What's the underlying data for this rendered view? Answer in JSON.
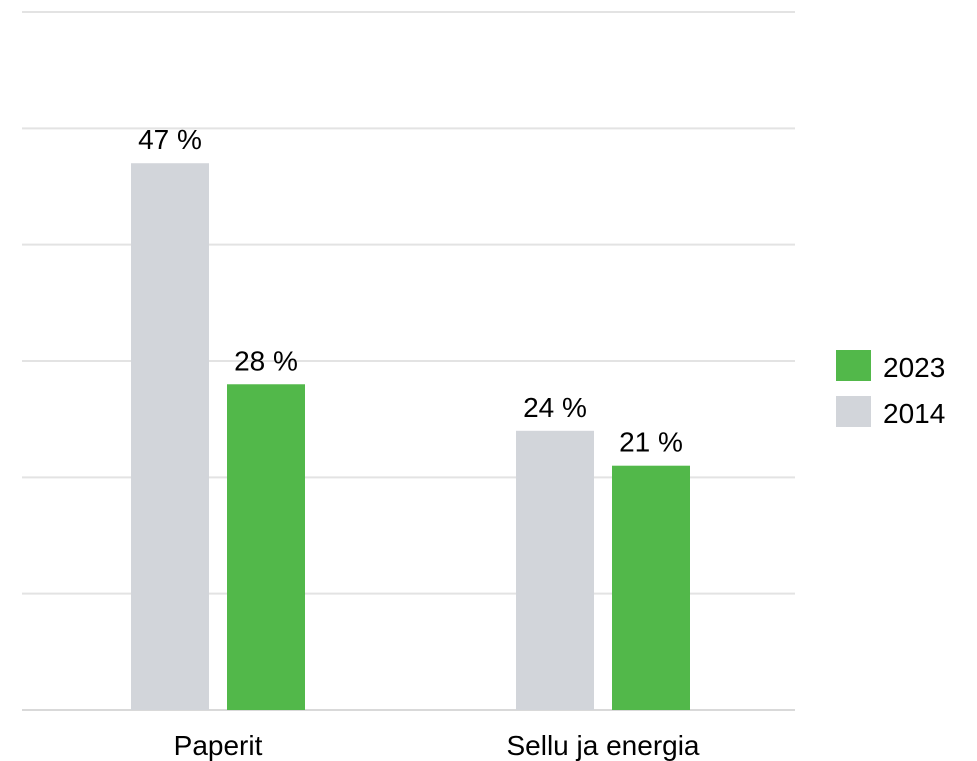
{
  "chart_data": {
    "type": "bar",
    "categories": [
      "Paperit",
      "Sellu ja energia"
    ],
    "series": [
      {
        "name": "2014",
        "values": [
          47,
          24
        ],
        "labels": [
          "47 %",
          "24 %"
        ],
        "color": "#d2d5da"
      },
      {
        "name": "2023",
        "values": [
          28,
          21
        ],
        "labels": [
          "28 %",
          "21 %"
        ],
        "color": "#52b84a"
      }
    ],
    "legend": {
      "position": "right",
      "entries": [
        {
          "label": "2023",
          "color": "#52b84a"
        },
        {
          "label": "2014",
          "color": "#d2d5da"
        }
      ]
    },
    "ylim": [
      0,
      60
    ],
    "grid": true,
    "colors": {
      "grid": "#e3e3e3",
      "axis": "#d9d9d9"
    }
  }
}
